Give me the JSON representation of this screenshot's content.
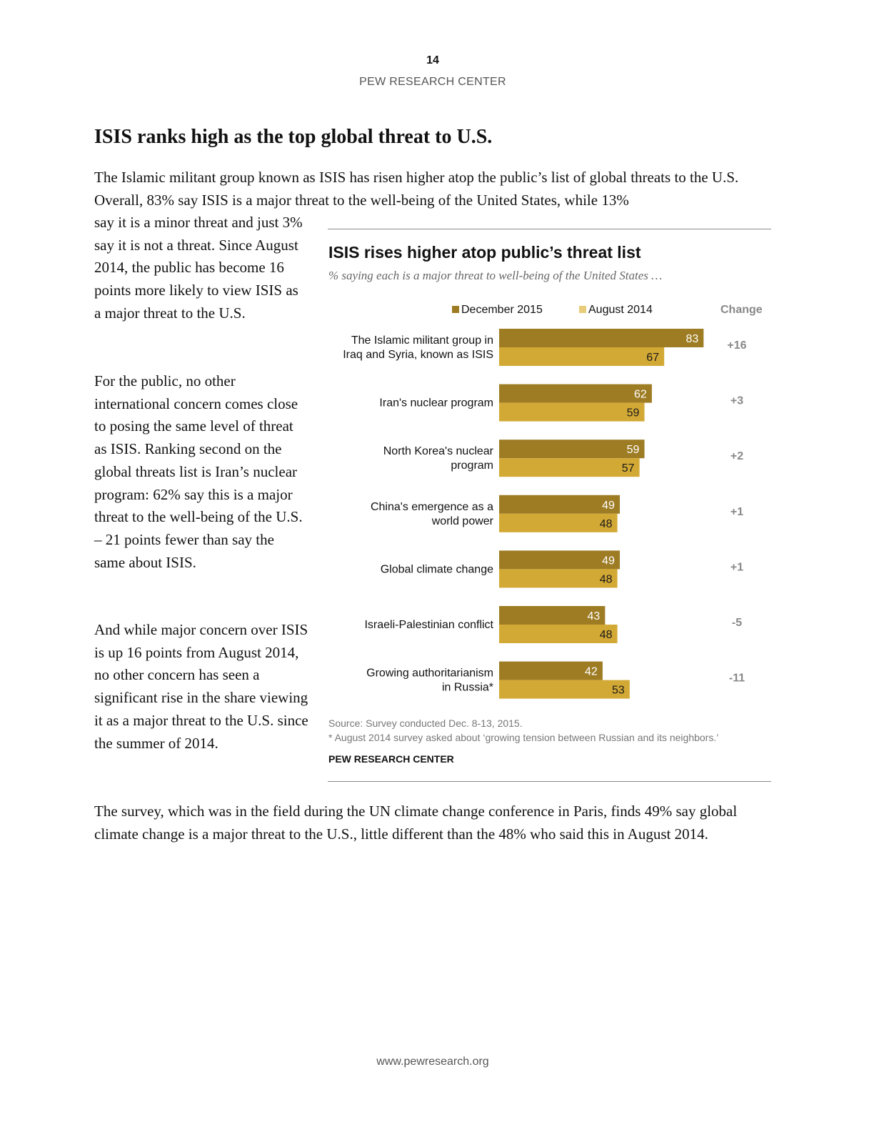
{
  "header": {
    "page_number": "14",
    "org": "PEW RESEARCH CENTER"
  },
  "article": {
    "heading": "ISIS ranks high as the top global threat to U.S.",
    "intro_line": "The Islamic militant group known as ISIS has risen higher atop the public’s list of global threats to the U.S. Overall, 83% say ISIS is a major threat to the well-being of the United States, while 13%",
    "intro_cont": "say it is a minor threat and just 3% say it is not a threat. Since August 2014, the public has become 16 points more likely to view ISIS as a major threat to the U.S.",
    "para2": "For the public, no other international concern comes close to posing the same level of threat as ISIS. Ranking second on the global threats list is Iran’s nuclear program: 62% say this is a major threat to the well-being of the U.S. – 21 points fewer than say the same about ISIS.",
    "para3": "And while major concern over ISIS is up 16 points from August 2014, no other concern has seen a significant rise in the share viewing it as a major threat to the U.S. since the summer of 2014.",
    "para_final": "The survey, which was in the field during the UN climate change conference in Paris, finds 49% say global climate change is a major threat to the U.S., little different than the 48% who said this in August 2014."
  },
  "chart_data": {
    "type": "bar",
    "orientation": "horizontal",
    "title": "ISIS rises higher atop public’s threat list",
    "subtitle": "% saying each is a major threat to well-being of the United States …",
    "categories": [
      [
        "The Islamic militant group in",
        "Iraq and Syria, known as ISIS"
      ],
      [
        "Iran's nuclear program"
      ],
      [
        "North Korea's nuclear",
        "program"
      ],
      [
        "China's emergence as a",
        "world power"
      ],
      [
        "Global climate change"
      ],
      [
        "Israeli-Palestinian conflict"
      ],
      [
        "Growing authoritarianism",
        "in Russia*"
      ]
    ],
    "series": [
      {
        "name": "December 2015",
        "color": "#9e7c24",
        "label_color": "#ffffff",
        "values": [
          83,
          62,
          59,
          49,
          49,
          43,
          42
        ]
      },
      {
        "name": "August 2014",
        "color": "#d3a935",
        "label_color": "#1a1a1a",
        "values": [
          67,
          59,
          57,
          48,
          48,
          48,
          53
        ]
      }
    ],
    "legend_swatch_colors": [
      "#9e7c24",
      "#e8cc7a"
    ],
    "change_header": "Change",
    "change": [
      "+16",
      "+3",
      "+2",
      "+1",
      "+1",
      "-5",
      "-11"
    ],
    "xlim": [
      0,
      100
    ],
    "source": "Source: Survey conducted Dec. 8-13, 2015.",
    "footnote": "* August 2014 survey asked about ‘growing tension between Russian and its neighbors.’",
    "org": "PEW RESEARCH CENTER"
  },
  "footer": {
    "url": "www.pewresearch.org"
  }
}
